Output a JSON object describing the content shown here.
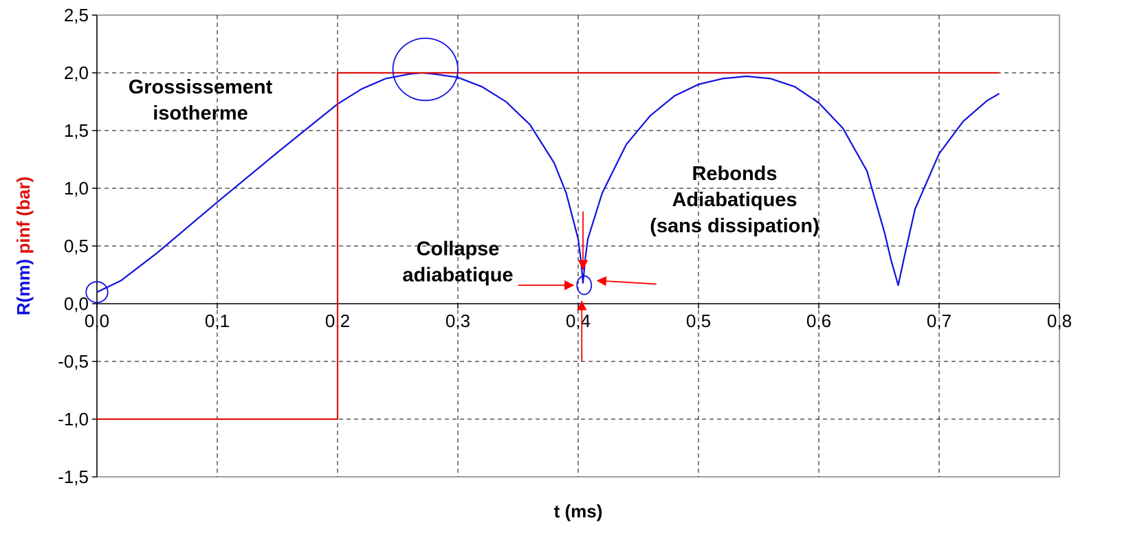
{
  "chart_data": {
    "type": "line",
    "xlabel": "t (ms)",
    "ylabel_parts": [
      {
        "text": "R(mm)",
        "color": "#1010e0"
      },
      {
        "text": "pinf (bar)",
        "color": "#e01010"
      }
    ],
    "xlim": [
      0,
      0.8
    ],
    "ylim": [
      -1.5,
      2.5
    ],
    "x_ticks": [
      0,
      0.1,
      0.2,
      0.3,
      0.4,
      0.5,
      0.6,
      0.7,
      0.8
    ],
    "x_tick_labels": [
      "0,0",
      "0,1",
      "0,2",
      "0,3",
      "0,4",
      "0,5",
      "0,6",
      "0,7",
      "0,8"
    ],
    "y_ticks": [
      -1.5,
      -1.0,
      -0.5,
      0.0,
      0.5,
      1.0,
      1.5,
      2.0,
      2.5
    ],
    "y_tick_labels": [
      "-1,5",
      "-1,0",
      "-0,5",
      "0,0",
      "0,5",
      "1,0",
      "1,5",
      "2,0",
      "2,5"
    ],
    "grid": "dashed",
    "series": [
      {
        "name": "R(mm)",
        "color": "#1010e0",
        "points": [
          [
            0,
            0.1
          ],
          [
            0.02,
            0.2
          ],
          [
            0.05,
            0.44
          ],
          [
            0.1,
            0.88
          ],
          [
            0.15,
            1.31
          ],
          [
            0.2,
            1.73
          ],
          [
            0.22,
            1.86
          ],
          [
            0.24,
            1.95
          ],
          [
            0.26,
            1.99
          ],
          [
            0.27,
            2.0
          ],
          [
            0.28,
            1.99
          ],
          [
            0.3,
            1.96
          ],
          [
            0.32,
            1.88
          ],
          [
            0.34,
            1.75
          ],
          [
            0.36,
            1.55
          ],
          [
            0.38,
            1.22
          ],
          [
            0.39,
            0.96
          ],
          [
            0.4,
            0.56
          ],
          [
            0.402,
            0.4
          ],
          [
            0.404,
            0.18
          ],
          [
            0.406,
            0.4
          ],
          [
            0.408,
            0.56
          ],
          [
            0.42,
            0.96
          ],
          [
            0.44,
            1.38
          ],
          [
            0.46,
            1.63
          ],
          [
            0.48,
            1.8
          ],
          [
            0.5,
            1.9
          ],
          [
            0.52,
            1.95
          ],
          [
            0.54,
            1.97
          ],
          [
            0.56,
            1.95
          ],
          [
            0.58,
            1.88
          ],
          [
            0.6,
            1.74
          ],
          [
            0.62,
            1.52
          ],
          [
            0.64,
            1.15
          ],
          [
            0.655,
            0.6
          ],
          [
            0.66,
            0.38
          ],
          [
            0.666,
            0.16
          ],
          [
            0.672,
            0.45
          ],
          [
            0.68,
            0.82
          ],
          [
            0.7,
            1.3
          ],
          [
            0.72,
            1.58
          ],
          [
            0.74,
            1.76
          ],
          [
            0.75,
            1.82
          ]
        ]
      },
      {
        "name": "pinf (bar)",
        "color": "#e01010",
        "points": [
          [
            0,
            -1.0
          ],
          [
            0.2,
            -1.0
          ],
          [
            0.2,
            2.0
          ],
          [
            0.75,
            2.0
          ]
        ]
      }
    ],
    "annotations": [
      {
        "lines": [
          "Grossissement",
          "isotherme"
        ],
        "x": 0.086,
        "y": 1.82
      },
      {
        "lines": [
          "Collapse",
          "adiabatique"
        ],
        "x": 0.3,
        "y": 0.42
      },
      {
        "lines": [
          "Rebonds",
          "Adiabatiques",
          "(sans dissipation)"
        ],
        "x": 0.53,
        "y": 1.07
      }
    ],
    "highlight_circles": [
      {
        "x": 0.0,
        "y": 0.1,
        "rx_data": 0.009,
        "ry_data": 0.09
      },
      {
        "x": 0.273,
        "y": 2.03,
        "rx_data": 0.027,
        "ry_data": 0.27
      },
      {
        "x": 0.405,
        "y": 0.16,
        "rx_data": 0.006,
        "ry_data": 0.08
      }
    ],
    "pointer_arrows": [
      {
        "from": [
          0.35,
          0.16
        ],
        "to": [
          0.396,
          0.16
        ]
      },
      {
        "from": [
          0.465,
          0.17
        ],
        "to": [
          0.416,
          0.2
        ]
      },
      {
        "from": [
          0.404,
          0.8
        ],
        "to": [
          0.404,
          0.3
        ]
      },
      {
        "from": [
          0.403,
          -0.5
        ],
        "to": [
          0.403,
          0.02
        ]
      }
    ]
  }
}
